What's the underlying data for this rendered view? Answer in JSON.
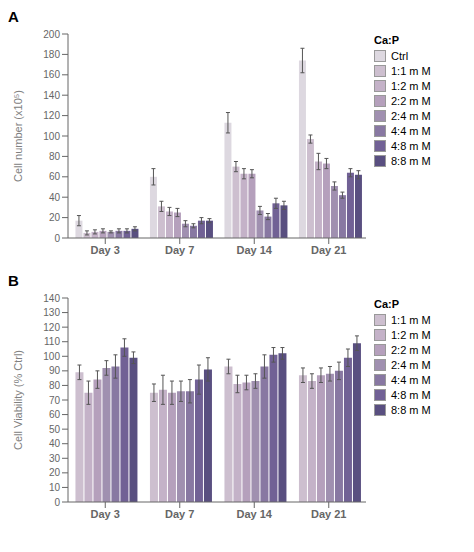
{
  "chart_data": [
    {
      "type": "bar",
      "title": "A",
      "ylabel": "Cell number (x10⁵)",
      "legend_title": "Ca:P",
      "legend": "right",
      "grid": false,
      "categories": [
        "Day 3",
        "Day 7",
        "Day 14",
        "Day 21"
      ],
      "ylim": [
        0,
        200
      ],
      "yticks": [
        0,
        20,
        40,
        60,
        80,
        100,
        120,
        140,
        160,
        180,
        200
      ],
      "series": [
        {
          "name": "Ctrl",
          "color": "#ddd8e0",
          "values": [
            17,
            60,
            113,
            174
          ],
          "errors": [
            5,
            8,
            10,
            12
          ]
        },
        {
          "name": "1:1 m M",
          "color": "#cdbfcf",
          "values": [
            5,
            31,
            70,
            97
          ],
          "errors": [
            2,
            5,
            5,
            4
          ]
        },
        {
          "name": "1:2 m M",
          "color": "#c4b2c8",
          "values": [
            6,
            26,
            63,
            75
          ],
          "errors": [
            2,
            4,
            5,
            8
          ]
        },
        {
          "name": "2:2 m M",
          "color": "#b5a0bc",
          "values": [
            7,
            25,
            63,
            73
          ],
          "errors": [
            2,
            4,
            4,
            5
          ]
        },
        {
          "name": "2:4 m M",
          "color": "#a090b0",
          "values": [
            6,
            14,
            27,
            51
          ],
          "errors": [
            1,
            3,
            4,
            4
          ]
        },
        {
          "name": "4:4 m M",
          "color": "#8878a2",
          "values": [
            7,
            12,
            21,
            42
          ],
          "errors": [
            2,
            2,
            3,
            3
          ]
        },
        {
          "name": "4:8 m M",
          "color": "#716195",
          "values": [
            7,
            17,
            34,
            64
          ],
          "errors": [
            2,
            3,
            5,
            4
          ]
        },
        {
          "name": "8:8 m M",
          "color": "#594f80",
          "values": [
            9,
            17,
            32,
            62
          ],
          "errors": [
            2,
            2,
            4,
            4
          ]
        }
      ]
    },
    {
      "type": "bar",
      "title": "B",
      "ylabel": "Cell Viability (% Ctrl)",
      "legend_title": "Ca:P",
      "legend": "right",
      "grid": false,
      "categories": [
        "Day 3",
        "Day 7",
        "Day 14",
        "Day 21"
      ],
      "ylim": [
        0,
        140
      ],
      "yticks": [
        0,
        10,
        20,
        30,
        40,
        50,
        60,
        70,
        80,
        90,
        100,
        110,
        120,
        130,
        140
      ],
      "series": [
        {
          "name": "1:1 m M",
          "color": "#cdbfcf",
          "values": [
            89,
            75,
            93,
            87
          ],
          "errors": [
            5,
            6,
            5,
            5
          ]
        },
        {
          "name": "1:2 m M",
          "color": "#c4b2c8",
          "values": [
            75,
            77,
            81,
            83
          ],
          "errors": [
            8,
            10,
            6,
            5
          ]
        },
        {
          "name": "2:2 m M",
          "color": "#b5a0bc",
          "values": [
            84,
            75,
            82,
            87
          ],
          "errors": [
            6,
            8,
            5,
            5
          ]
        },
        {
          "name": "2:4 m M",
          "color": "#a090b0",
          "values": [
            92,
            76,
            83,
            88
          ],
          "errors": [
            5,
            7,
            5,
            5
          ]
        },
        {
          "name": "4:4 m M",
          "color": "#8878a2",
          "values": [
            93,
            76,
            93,
            90
          ],
          "errors": [
            8,
            8,
            8,
            6
          ]
        },
        {
          "name": "4:8 m M",
          "color": "#716195",
          "values": [
            106,
            84,
            101,
            99
          ],
          "errors": [
            6,
            10,
            5,
            6
          ]
        },
        {
          "name": "8:8 m M",
          "color": "#594f80",
          "values": [
            99,
            91,
            102,
            109
          ],
          "errors": [
            4,
            8,
            4,
            5
          ]
        }
      ]
    }
  ]
}
